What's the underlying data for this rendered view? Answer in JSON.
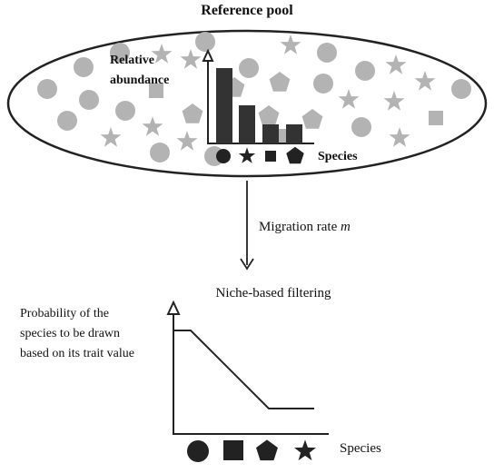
{
  "reference_pool": {
    "title": "Reference pool",
    "abundance_axis_label_line1": "Relative",
    "abundance_axis_label_line2": "abundance",
    "species_axis_label": "Species",
    "colors": {
      "pool_shapes": "#b3b3b3",
      "bars": "#333333",
      "outline": "#222222"
    }
  },
  "migration": {
    "label_prefix": "Migration rate ",
    "label_symbol": "m"
  },
  "filtering": {
    "title": "Niche-based filtering",
    "ylabel_line1": "Probability of the",
    "ylabel_line2": "species to be drawn",
    "ylabel_line3": "based on its trait value",
    "species_axis_label": "Species"
  },
  "species_icons": [
    "circle-icon",
    "star-icon",
    "square-icon",
    "pentagon-icon"
  ],
  "filter_icons": [
    "circle-icon",
    "square-icon",
    "pentagon-icon",
    "star-icon"
  ]
}
